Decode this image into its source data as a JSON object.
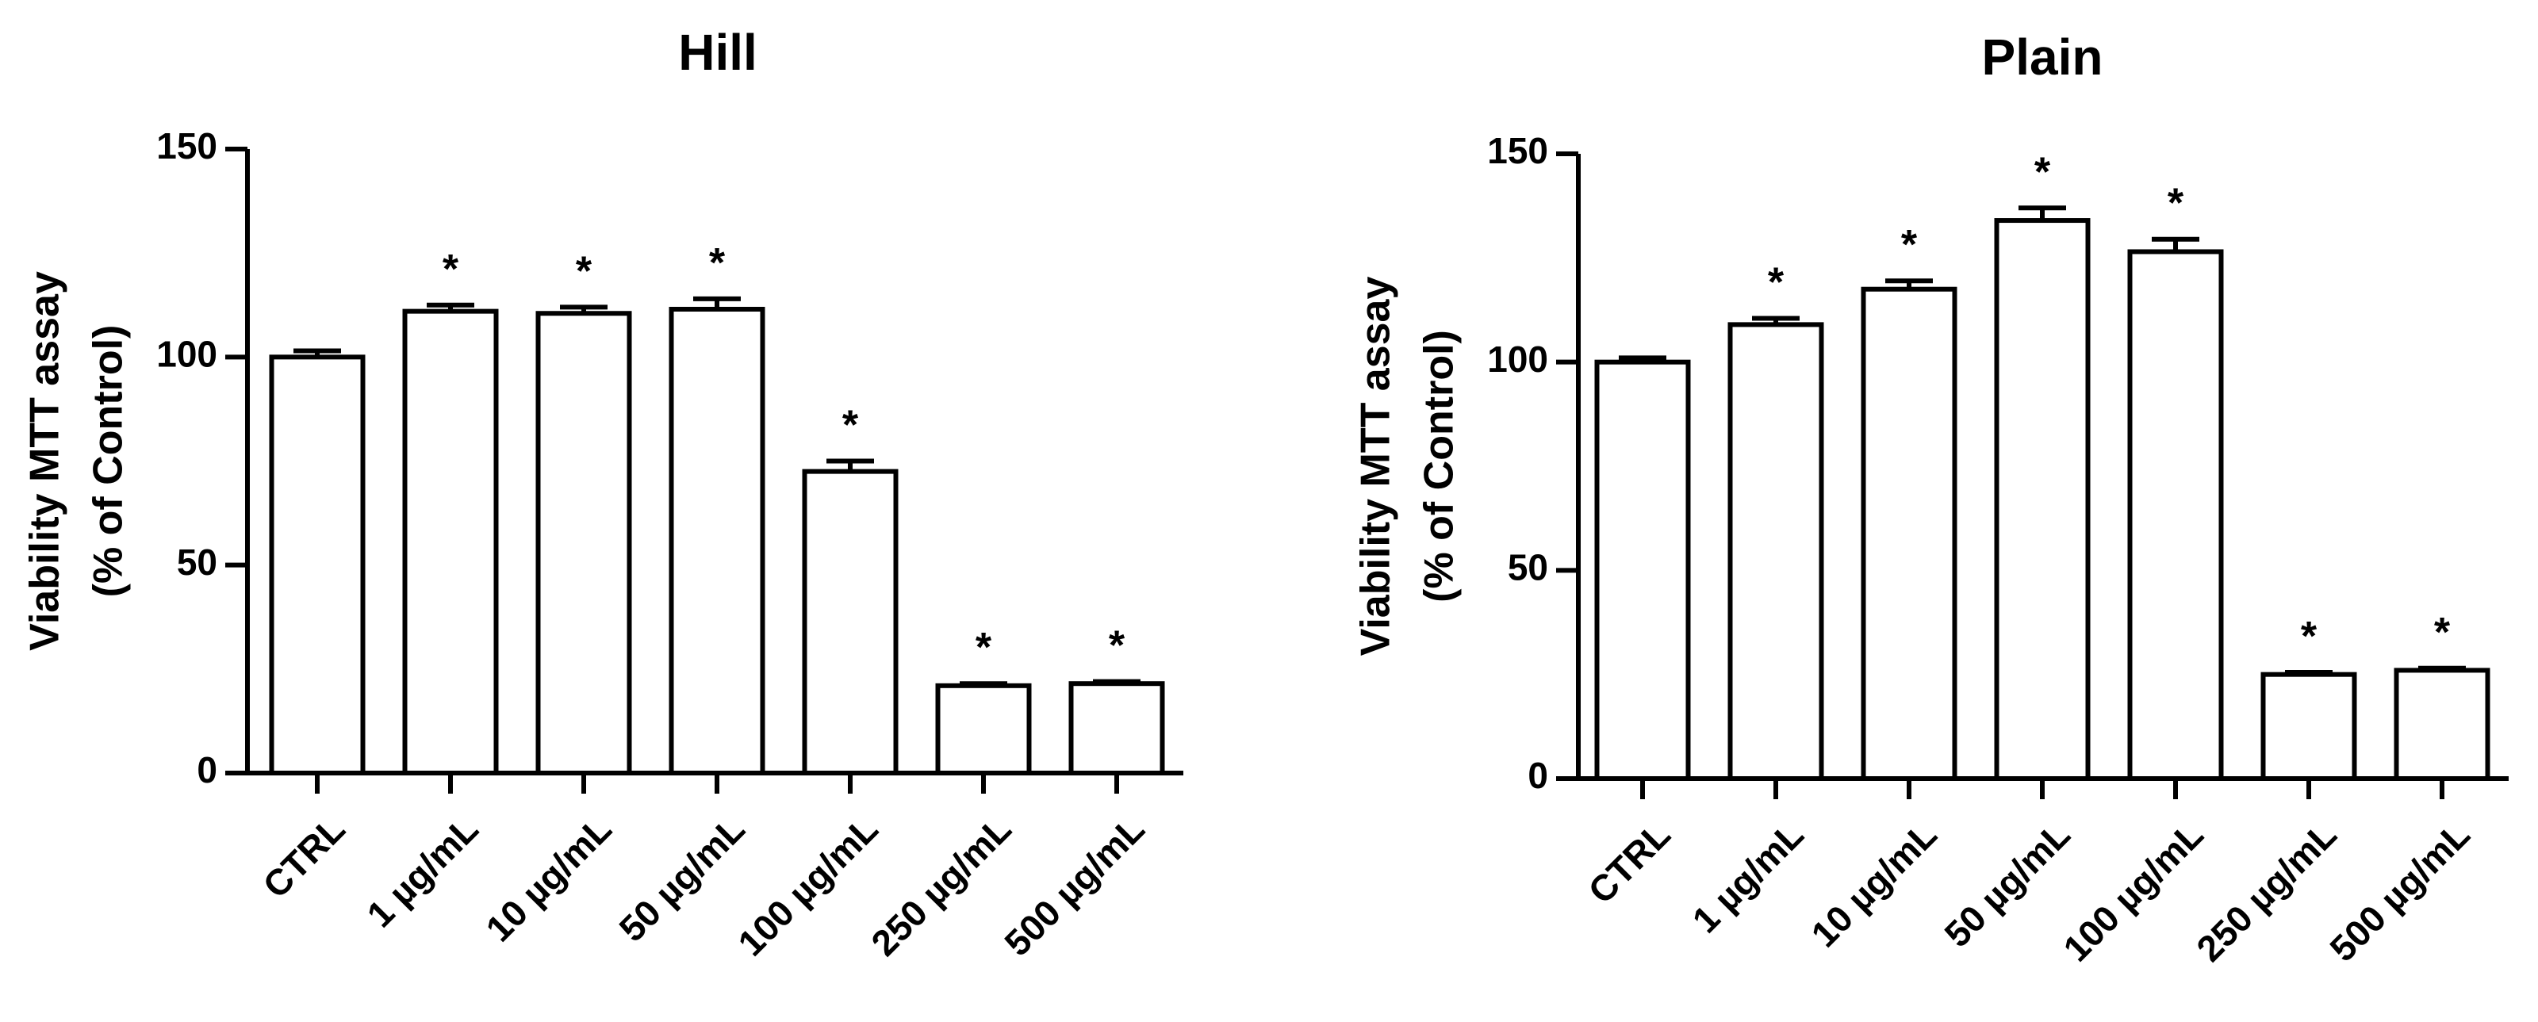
{
  "chart_data": [
    {
      "type": "bar",
      "title": "Hill",
      "ylabel": [
        "Viability MTT assay",
        "(% of Control)"
      ],
      "categories": [
        "CTRL",
        "1 µg/mL",
        "10 µg/mL",
        "50 µg/mL",
        "100 µg/mL",
        "250 µg/mL",
        "500 µg/mL"
      ],
      "values": [
        100,
        111,
        110.5,
        111.5,
        72.5,
        21,
        21.5
      ],
      "errors": [
        1.5,
        1.5,
        1.5,
        2.5,
        2.5,
        0.5,
        0.5
      ],
      "annotations": [
        null,
        "*",
        "*",
        "*",
        "*",
        "*",
        "*"
      ],
      "color": "#ffffff",
      "ylim": [
        0,
        150
      ],
      "yticks": [
        0,
        50,
        100,
        150
      ]
    },
    {
      "type": "bar",
      "title": "Plain",
      "ylabel": [
        "Viability MTT assay",
        "(% of Control)"
      ],
      "categories": [
        "CTRL",
        "1 µg/mL",
        "10 µg/mL",
        "50 µg/mL",
        "100 µg/mL",
        "250 µg/mL",
        "500 µg/mL"
      ],
      "values": [
        100,
        109,
        117.5,
        134,
        126.5,
        25,
        26
      ],
      "errors": [
        1,
        1.5,
        2,
        3,
        3,
        0.5,
        0.5
      ],
      "annotations": [
        null,
        "*",
        "*",
        "*",
        "*",
        "*",
        "*"
      ],
      "color": "#ffffff",
      "ylim": [
        0,
        150
      ],
      "yticks": [
        0,
        50,
        100,
        150
      ]
    }
  ]
}
